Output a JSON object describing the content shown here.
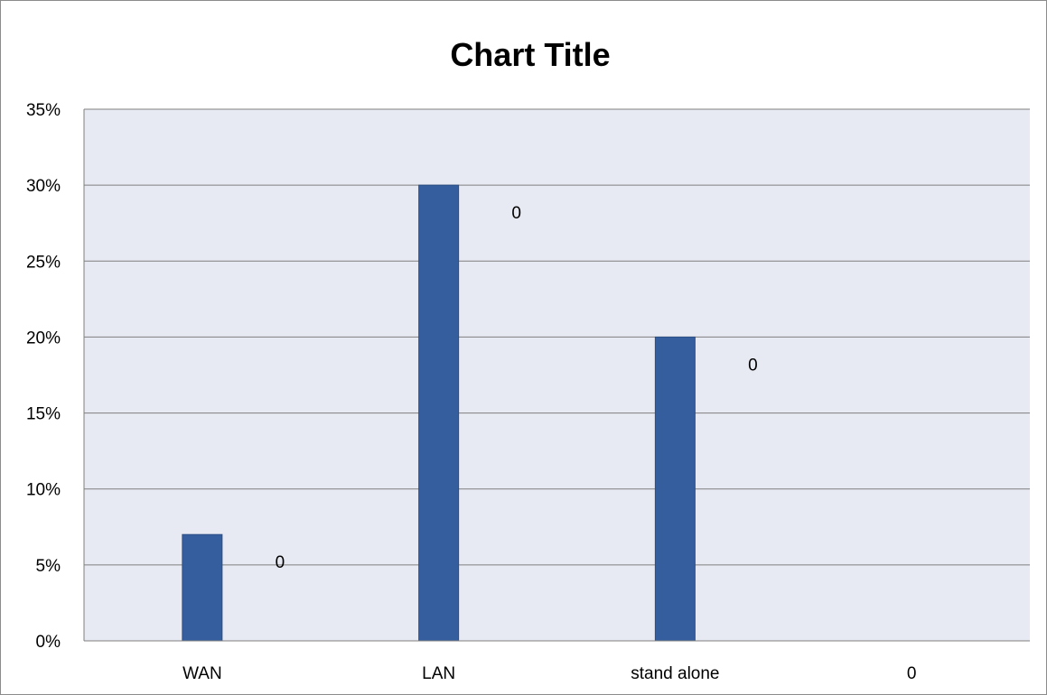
{
  "chart_data": {
    "type": "bar",
    "title": "Chart Title",
    "categories": [
      "WAN",
      "LAN",
      "stand alone",
      "0"
    ],
    "values": [
      0.07,
      0.3,
      0.2,
      0
    ],
    "data_labels": [
      "0",
      "0",
      "0",
      ""
    ],
    "ylim": [
      0,
      0.35
    ],
    "yticks": [
      0,
      0.05,
      0.1,
      0.15,
      0.2,
      0.25,
      0.3,
      0.35
    ],
    "ytick_labels": [
      "0%",
      "5%",
      "10%",
      "15%",
      "20%",
      "25%",
      "30%",
      "35%"
    ],
    "grid": true,
    "legend": "none",
    "colors": {
      "bar": "#355e9f",
      "plot_background": "#e8eaf3",
      "gridline": "#7f7f7f"
    }
  }
}
